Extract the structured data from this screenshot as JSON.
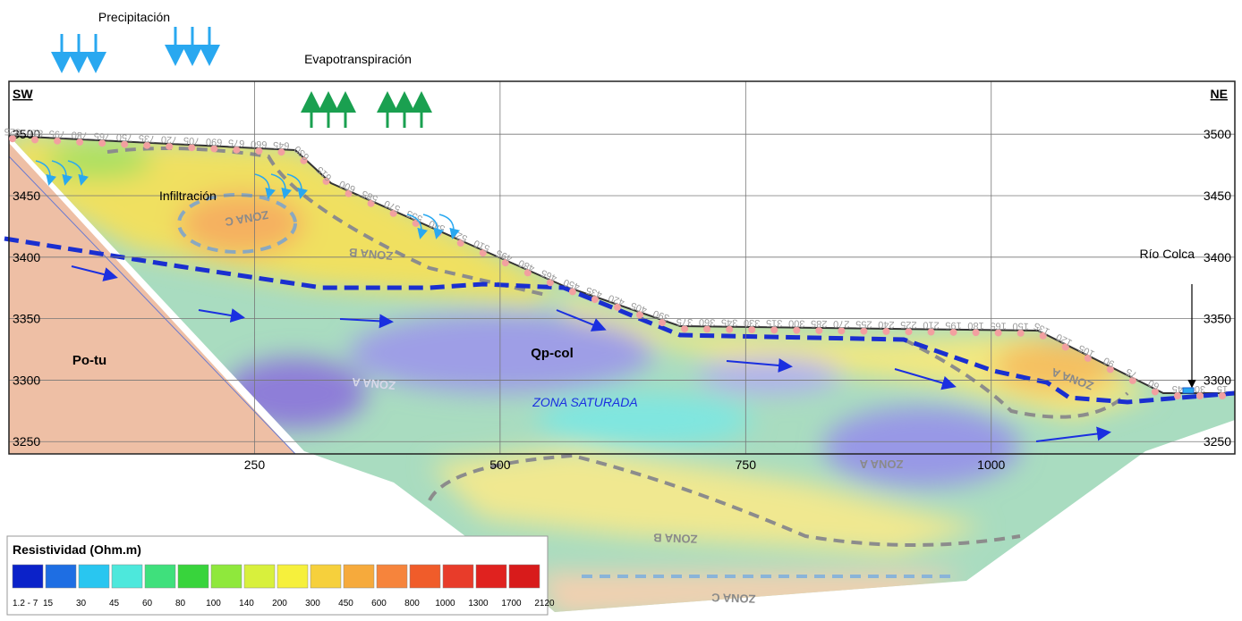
{
  "header": {
    "precipitation": "Precipitación",
    "evapotranspiration": "Evapotranspiración"
  },
  "section": {
    "left_label": "SW",
    "right_label": "NE",
    "depth_ticks": [
      3500,
      3450,
      3400,
      3350,
      3300,
      3250
    ],
    "distance_ticks": [
      250,
      500,
      750,
      1000
    ],
    "distance_range": [
      0,
      1248
    ],
    "depth_range": [
      3543,
      3240
    ],
    "electrodes": [
      825,
      810,
      795,
      780,
      765,
      750,
      735,
      720,
      705,
      690,
      675,
      660,
      645,
      630,
      615,
      600,
      585,
      570,
      555,
      540,
      525,
      510,
      495,
      480,
      465,
      450,
      435,
      420,
      405,
      390,
      375,
      360,
      345,
      330,
      315,
      300,
      285,
      270,
      255,
      240,
      225,
      210,
      195,
      180,
      165,
      150,
      135,
      120,
      105,
      90,
      75,
      60,
      45,
      30,
      15
    ],
    "labels": {
      "infiltration": "Infiltración",
      "river": "Río Colca",
      "po_tu": "Po-tu",
      "qp_col": "Qp-col",
      "saturated": "ZONA SATURADA",
      "zona_c_1": "ZONA C",
      "zona_b_1": "ZONA B",
      "zona_a_1": "ZONA A",
      "zona_a_2": "ZONA A",
      "zona_a_3": "ZONA A",
      "zona_b_2": "ZONA B",
      "zona_c_2": "ZONA C"
    }
  },
  "legend": {
    "title": "Resistividad (Ohm.m)",
    "colors": [
      "#0b22c9",
      "#1e6ee3",
      "#29c6f0",
      "#4de8dc",
      "#3fe07c",
      "#38d43c",
      "#8fe83c",
      "#d8f03c",
      "#f6f03c",
      "#f6d03c",
      "#f6aa3c",
      "#f6843c",
      "#f05c2a",
      "#e83c2a",
      "#e0221f",
      "#d81b1b"
    ],
    "labels": [
      "1.2 - 7",
      "15",
      "30",
      "45",
      "60",
      "80",
      "100",
      "140",
      "200",
      "300",
      "450",
      "600",
      "800",
      "1000",
      "1300",
      "1700",
      "2120"
    ]
  }
}
